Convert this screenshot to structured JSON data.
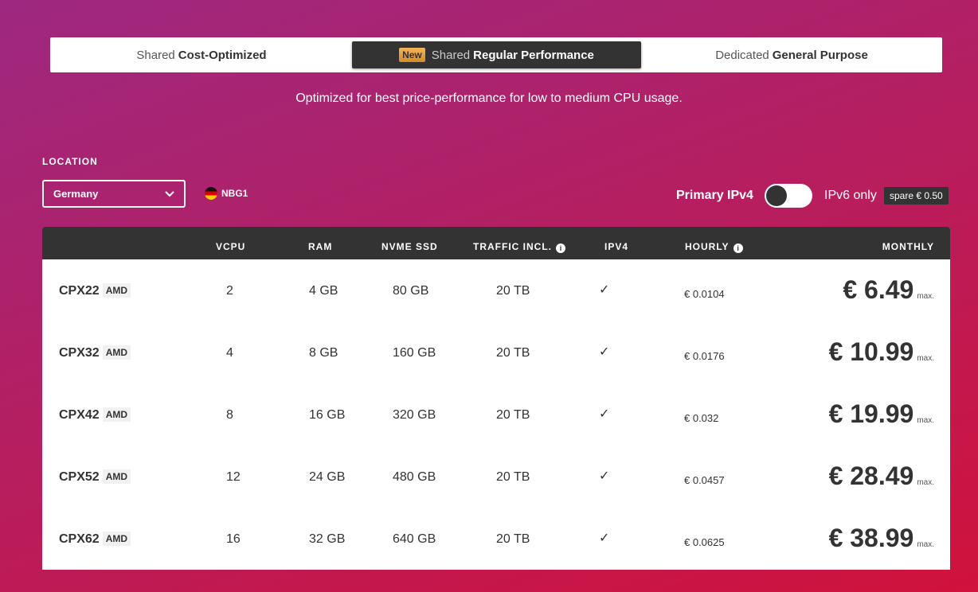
{
  "tabs": [
    {
      "prefix": "Shared",
      "label": "Cost-Optimized",
      "active": false
    },
    {
      "badge": "New",
      "prefix": "Shared",
      "label": "Regular Performance",
      "active": true
    },
    {
      "prefix": "Dedicated",
      "label": "General Purpose",
      "active": false
    }
  ],
  "subtitle": "Optimized for best price-performance for low to medium CPU usage.",
  "location": {
    "label": "LOCATION",
    "selected": "Germany",
    "datacenter": "NBG1"
  },
  "ip": {
    "primary_label": "Primary IPv4",
    "toggle_on": false,
    "ipv6_label": "IPv6 only",
    "spare_label": "spare € 0.50"
  },
  "table": {
    "headers": {
      "vcpu": "VCPU",
      "ram": "RAM",
      "ssd": "NVME SSD",
      "traffic": "TRAFFIC INCL.",
      "ipv4": "IPV4",
      "hourly": "HOURLY",
      "monthly": "MONTHLY"
    },
    "max_label": "max.",
    "rows": [
      {
        "name": "CPX22",
        "cpu": "AMD",
        "vcpu": "2",
        "ram": "4 GB",
        "ssd": "80 GB",
        "traffic": "20 TB",
        "ipv4": "✓",
        "hourly": "€ 0.0104",
        "monthly": "€ 6.49"
      },
      {
        "name": "CPX32",
        "cpu": "AMD",
        "vcpu": "4",
        "ram": "8 GB",
        "ssd": "160 GB",
        "traffic": "20 TB",
        "ipv4": "✓",
        "hourly": "€ 0.0176",
        "monthly": "€ 10.99"
      },
      {
        "name": "CPX42",
        "cpu": "AMD",
        "vcpu": "8",
        "ram": "16 GB",
        "ssd": "320 GB",
        "traffic": "20 TB",
        "ipv4": "✓",
        "hourly": "€ 0.032",
        "monthly": "€ 19.99"
      },
      {
        "name": "CPX52",
        "cpu": "AMD",
        "vcpu": "12",
        "ram": "24 GB",
        "ssd": "480 GB",
        "traffic": "20 TB",
        "ipv4": "✓",
        "hourly": "€ 0.0457",
        "monthly": "€ 28.49"
      },
      {
        "name": "CPX62",
        "cpu": "AMD",
        "vcpu": "16",
        "ram": "32 GB",
        "ssd": "640 GB",
        "traffic": "20 TB",
        "ipv4": "✓",
        "hourly": "€ 0.0625",
        "monthly": "€ 38.99"
      }
    ]
  }
}
